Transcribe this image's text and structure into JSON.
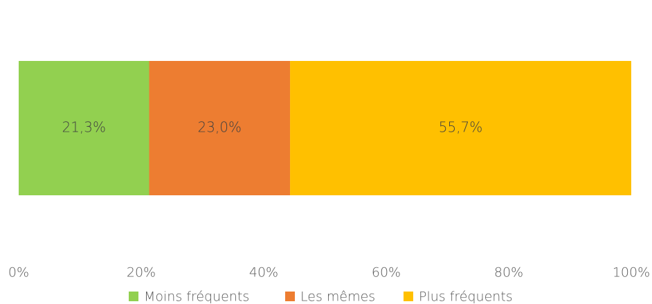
{
  "chart_data": {
    "type": "stacked-bar",
    "orientation": "horizontal",
    "categories": [
      null
    ],
    "series": [
      {
        "name": "Moins fréquents",
        "color": "#92d050",
        "values": [
          21.3
        ],
        "value_labels": [
          "21,3%"
        ]
      },
      {
        "name": "Les mêmes",
        "color": "#ed7d31",
        "values": [
          23.0
        ],
        "value_labels": [
          "23,0%"
        ]
      },
      {
        "name": "Plus fréquents",
        "color": "#ffc000",
        "values": [
          55.7
        ],
        "value_labels": [
          "55,7%"
        ]
      }
    ],
    "xlim": [
      0,
      100
    ],
    "xticks": [
      {
        "value": 0,
        "label": "0%"
      },
      {
        "value": 20,
        "label": "20%"
      },
      {
        "value": 40,
        "label": "40%"
      },
      {
        "value": 60,
        "label": "60%"
      },
      {
        "value": 80,
        "label": "80%"
      },
      {
        "value": 100,
        "label": "100%"
      }
    ],
    "grid": false,
    "legend": "bottom"
  }
}
